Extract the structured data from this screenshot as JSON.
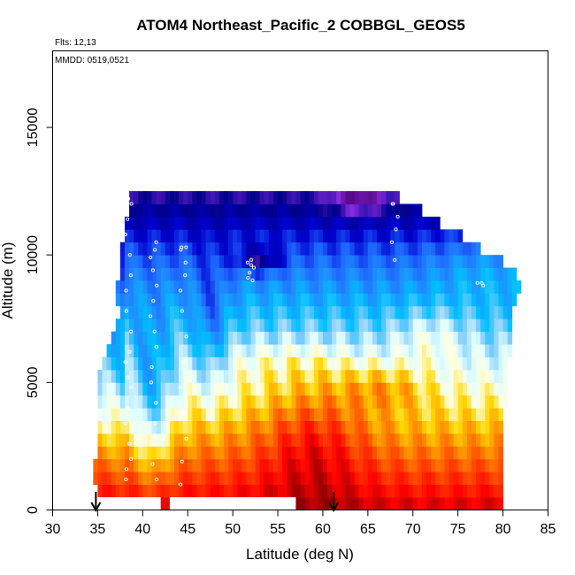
{
  "chart_data": {
    "type": "heatmap",
    "title": "ATOM4 Northeast_Pacific_2 COBBGL_GEOS5",
    "annotations": {
      "flights": "Flts: 12,13",
      "dates": "MMDD: 0519,0521"
    },
    "xlabel": "Latitude (deg N)",
    "ylabel": "Altitude (m)",
    "xlim": [
      30,
      85
    ],
    "ylim": [
      0,
      18000
    ],
    "x_ticks": [
      30,
      35,
      40,
      45,
      50,
      55,
      60,
      65,
      70,
      75,
      80,
      85
    ],
    "y_ticks": [
      0,
      5000,
      10000,
      15000
    ],
    "grid": false,
    "legend": "none",
    "colormap": [
      "#4a006e",
      "#8a2be2",
      "#00008b",
      "#0000cd",
      "#1e64ff",
      "#1e90ff",
      "#00bfff",
      "#87cefa",
      "#e0ffff",
      "#ffffe0",
      "#ffd700",
      "#ff8c00",
      "#ff4500",
      "#ff0000",
      "#8b0000"
    ],
    "altitude_bins_m": [
      0,
      500,
      1000,
      1500,
      2000,
      2500,
      3000,
      3500,
      4000,
      4500,
      5000,
      5500,
      6000,
      6500,
      7000,
      7500,
      8000,
      8500,
      9000,
      9500,
      10000,
      10500,
      11000,
      11500,
      12000,
      12500
    ],
    "layer_lat_start": [
      35,
      35,
      34.5,
      34.5,
      35,
      35,
      35,
      35,
      35,
      35,
      35,
      35.5,
      36,
      36.5,
      37,
      37.5,
      37,
      37,
      37.5,
      37.5,
      37.5,
      38,
      38,
      38.5,
      38.5
    ],
    "layer_lat_end": [
      80,
      80,
      80,
      80,
      80,
      80,
      80,
      80,
      80.5,
      80.5,
      80.5,
      80.5,
      81,
      81,
      81,
      81,
      81.5,
      82,
      81.5,
      80,
      77.5,
      75.5,
      73,
      71,
      68.5
    ],
    "no_data_gaps": [
      {
        "lat": [
          35,
          42
        ],
        "alt": [
          0,
          500
        ]
      },
      {
        "lat": [
          43,
          57
        ],
        "alt": [
          0,
          500
        ]
      }
    ],
    "profiles": [
      {
        "lat": 38.4,
        "alt": [
          12200,
          12000,
          11400,
          10800,
          10000,
          9200,
          8600,
          7800,
          7000,
          6200,
          5800,
          5200,
          4800,
          4000,
          3400,
          2600,
          2000,
          1600,
          1200
        ]
      },
      {
        "lat": 41.2,
        "alt": [
          10500,
          10200,
          9900,
          9400,
          8800,
          8200,
          7600,
          7000,
          6400,
          5600,
          5000,
          4200,
          3400,
          2600,
          1800,
          1200
        ]
      },
      {
        "lat": 44.5,
        "alt": [
          10300,
          10300,
          10200,
          9700,
          9200,
          8600,
          7800,
          6800,
          5800,
          4800,
          3800,
          2800,
          1900,
          1000
        ]
      },
      {
        "lat": 52.0,
        "alt": [
          9800,
          9700,
          9600,
          9500,
          9300,
          9100,
          9000
        ]
      },
      {
        "lat": 68.0,
        "alt": [
          12000,
          12000,
          11500,
          11000,
          10500,
          9800
        ]
      },
      {
        "lat": 77.5,
        "alt": [
          8900,
          8900,
          8800
        ]
      }
    ],
    "markers": [
      {
        "label": "arrow",
        "lat": 34.8
      },
      {
        "label": "arrow",
        "lat": 61.2
      }
    ]
  }
}
